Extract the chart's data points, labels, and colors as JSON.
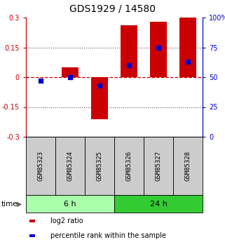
{
  "title": "GDS1929 / 14580",
  "samples": [
    "GSM85323",
    "GSM85324",
    "GSM85325",
    "GSM85326",
    "GSM85327",
    "GSM85328"
  ],
  "log2_ratio": [
    0.0,
    0.05,
    -0.21,
    0.26,
    0.28,
    0.3
  ],
  "percentile_rank": [
    47,
    50,
    43,
    60,
    75,
    63
  ],
  "groups": [
    {
      "label": "6 h",
      "indices": [
        0,
        1,
        2
      ],
      "color": "#aaffaa"
    },
    {
      "label": "24 h",
      "indices": [
        3,
        4,
        5
      ],
      "color": "#33cc33"
    }
  ],
  "bar_color": "#cc0000",
  "dot_color": "#0000cc",
  "ylim_left": [
    -0.3,
    0.3
  ],
  "ylim_right": [
    0,
    100
  ],
  "yticks_left": [
    -0.3,
    -0.15,
    0,
    0.15,
    0.3
  ],
  "yticks_right": [
    0,
    25,
    50,
    75,
    100
  ],
  "hline_color": "#cc0000",
  "grid_color": "#555555",
  "bar_width": 0.55,
  "legend_items": [
    {
      "label": "log2 ratio",
      "color": "#cc0000"
    },
    {
      "label": "percentile rank within the sample",
      "color": "#0000cc"
    }
  ]
}
